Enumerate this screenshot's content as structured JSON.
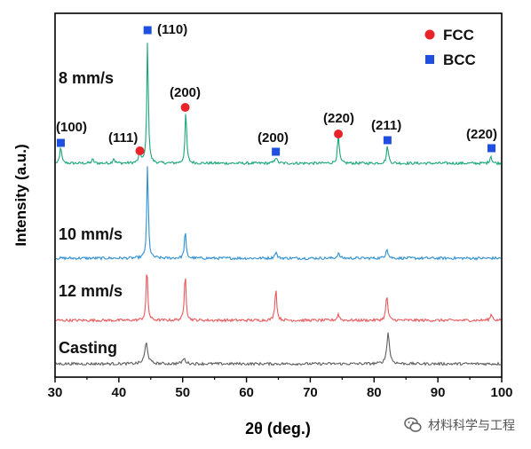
{
  "chart_data": {
    "type": "line",
    "xlabel": "2θ (deg.)",
    "ylabel": "Intensity (a.u.)",
    "xlim": [
      30,
      100
    ],
    "xticks": [
      30,
      40,
      50,
      60,
      70,
      80,
      90,
      100
    ],
    "legend": {
      "placement": "top-right",
      "entries": [
        {
          "label": "FCC",
          "marker": "circle",
          "color": "#e8242a"
        },
        {
          "label": "BCC",
          "marker": "square",
          "color": "#1f4fe0"
        }
      ]
    },
    "series": [
      {
        "name": "8 mm/s",
        "color": "#1aa57a",
        "baseline": 0.0,
        "peaks": [
          {
            "x": 30.9,
            "h": 0.14,
            "w": 0.15
          },
          {
            "x": 35.9,
            "h": 0.03,
            "w": 0.18
          },
          {
            "x": 39.2,
            "h": 0.04,
            "w": 0.18
          },
          {
            "x": 43.3,
            "h": 0.1,
            "w": 0.18
          },
          {
            "x": 44.5,
            "h": 1.0,
            "w": 0.14
          },
          {
            "x": 50.5,
            "h": 0.42,
            "w": 0.15
          },
          {
            "x": 64.6,
            "h": 0.05,
            "w": 0.2
          },
          {
            "x": 74.4,
            "h": 0.22,
            "w": 0.17
          },
          {
            "x": 82.1,
            "h": 0.14,
            "w": 0.18
          },
          {
            "x": 98.3,
            "h": 0.06,
            "w": 0.18
          }
        ]
      },
      {
        "name": "10 mm/s",
        "color": "#2f8fd2",
        "baseline": 0.0,
        "peaks": [
          {
            "x": 44.5,
            "h": 0.77,
            "w": 0.14
          },
          {
            "x": 50.4,
            "h": 0.22,
            "w": 0.15
          },
          {
            "x": 64.6,
            "h": 0.05,
            "w": 0.2
          },
          {
            "x": 74.4,
            "h": 0.04,
            "w": 0.2
          },
          {
            "x": 82.0,
            "h": 0.08,
            "w": 0.2
          }
        ]
      },
      {
        "name": "12 mm/s",
        "color": "#e8595c",
        "baseline": 0.0,
        "peaks": [
          {
            "x": 44.4,
            "h": 0.43,
            "w": 0.15
          },
          {
            "x": 50.4,
            "h": 0.4,
            "w": 0.15
          },
          {
            "x": 64.6,
            "h": 0.26,
            "w": 0.17
          },
          {
            "x": 74.4,
            "h": 0.05,
            "w": 0.2
          },
          {
            "x": 82.0,
            "h": 0.2,
            "w": 0.18
          },
          {
            "x": 98.4,
            "h": 0.05,
            "w": 0.2
          }
        ]
      },
      {
        "name": "Casting",
        "color": "#5e5e5e",
        "baseline": 0.0,
        "peaks": [
          {
            "x": 44.3,
            "h": 0.17,
            "w": 0.28
          },
          {
            "x": 50.2,
            "h": 0.04,
            "w": 0.3
          },
          {
            "x": 82.2,
            "h": 0.25,
            "w": 0.25
          }
        ]
      }
    ],
    "annotations": [
      {
        "text": "(100)",
        "phase": "BCC",
        "x": 30.9
      },
      {
        "text": "(111)",
        "phase": "FCC",
        "x": 43.3
      },
      {
        "text": "(110)",
        "phase": "BCC",
        "x": 44.5
      },
      {
        "text": "(200)",
        "phase": "FCC",
        "x": 50.4
      },
      {
        "text": "(200)",
        "phase": "BCC",
        "x": 64.6
      },
      {
        "text": "(220)",
        "phase": "FCC",
        "x": 74.4
      },
      {
        "text": "(211)",
        "phase": "BCC",
        "x": 82.1
      },
      {
        "text": "(220)",
        "phase": "BCC",
        "x": 98.4
      }
    ],
    "grid": false
  },
  "watermark": {
    "text": "材料科学与工程",
    "icon": "wechat-icon"
  }
}
